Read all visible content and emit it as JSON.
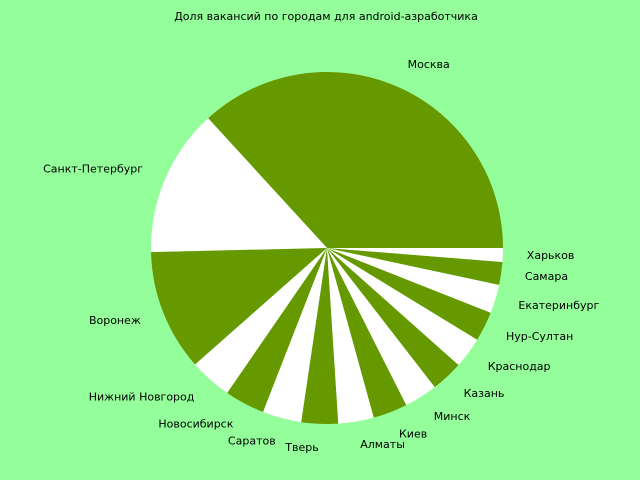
{
  "chart_data": {
    "type": "pie",
    "title": "Доля вакансий по городам для android-азработчика",
    "colors": [
      "#669900",
      "#ffffff"
    ],
    "slices": [
      {
        "label": "Москва",
        "value": 35.0
      },
      {
        "label": "Санкт-Петербург",
        "value": 12.9
      },
      {
        "label": "Воронеж",
        "value": 10.6
      },
      {
        "label": "Нижний Новгород",
        "value": 3.7
      },
      {
        "label": "Новосибирск",
        "value": 3.5
      },
      {
        "label": "Саратов",
        "value": 3.4
      },
      {
        "label": "Тверь",
        "value": 3.2
      },
      {
        "label": "Алматы",
        "value": 3.1
      },
      {
        "label": "Киев",
        "value": 3.0
      },
      {
        "label": "Минск",
        "value": 2.9
      },
      {
        "label": "Казань",
        "value": 2.8
      },
      {
        "label": "Краснодар",
        "value": 2.7
      },
      {
        "label": "Нур-Султан",
        "value": 2.6
      },
      {
        "label": "Екатеринбург",
        "value": 2.5
      },
      {
        "label": "Самара",
        "value": 2.0
      },
      {
        "label": "Харьков",
        "value": 1.2
      }
    ]
  }
}
